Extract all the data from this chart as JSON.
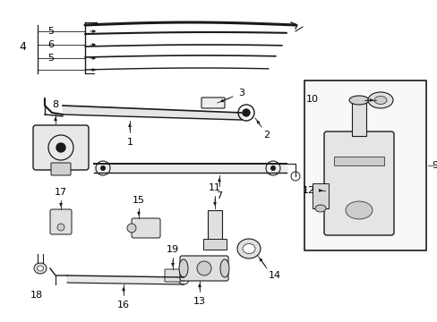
{
  "bg_color": "#ffffff",
  "line_color": "#1a1a1a",
  "text_color": "#000000",
  "fig_width": 4.89,
  "fig_height": 3.6,
  "dpi": 100,
  "xlim": [
    0,
    489
  ],
  "ylim": [
    0,
    360
  ]
}
